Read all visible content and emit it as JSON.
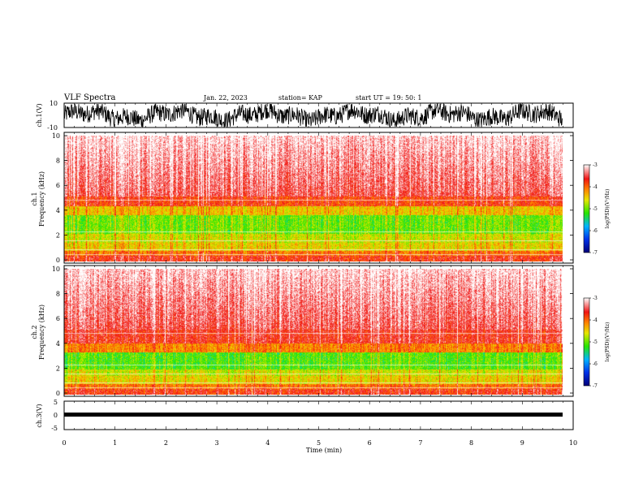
{
  "header": {
    "title": "VLF Spectra",
    "date": "Jan. 22, 2023",
    "station": "station= KAP",
    "start": "start  UT  =   19: 50: 1"
  },
  "chart_data": [
    {
      "type": "line",
      "name": "ch1-waveform",
      "ylabel": "ch.1(V)",
      "ylim": [
        -10,
        10
      ],
      "yticks": [
        "10",
        "-10"
      ],
      "xlim": [
        0,
        10
      ]
    },
    {
      "type": "heatmap",
      "name": "ch1-spectrogram",
      "ylabel": "ch.1\nFrequency  (kHz)",
      "ylim": [
        0,
        10
      ],
      "yticks": [
        "0",
        "2",
        "4",
        "6",
        "8",
        "10"
      ],
      "xlim": [
        0,
        10
      ],
      "colorbar": {
        "label": "log(PSD)(V²/Hz)",
        "range": [
          -7,
          -3
        ],
        "ticks": [
          "-3",
          "-4",
          "-5",
          "-6",
          "-7"
        ]
      }
    },
    {
      "type": "heatmap",
      "name": "ch2-spectrogram",
      "ylabel": "ch.2\nFrequency  (kHz)",
      "ylim": [
        0,
        10
      ],
      "yticks": [
        "0",
        "2",
        "4",
        "6",
        "8",
        "10"
      ],
      "xlim": [
        0,
        10
      ],
      "colorbar": {
        "label": "log(PSD)(V²/Hz)",
        "range": [
          -7,
          -3
        ],
        "ticks": [
          "-3",
          "-4",
          "-5",
          "-6",
          "-7"
        ]
      }
    },
    {
      "type": "line",
      "name": "ch3-waveform",
      "ylabel": "ch.3(V)",
      "ylim": [
        -5,
        5
      ],
      "yticks": [
        "5",
        "0",
        "-5"
      ],
      "xlim": [
        0,
        10
      ],
      "xlabel": "Time  (min)",
      "xticks": [
        "0",
        "1",
        "2",
        "3",
        "4",
        "5",
        "6",
        "7",
        "8",
        "9",
        "10"
      ]
    }
  ],
  "colors": {
    "low": "#0000cc",
    "mid": "#22ee00",
    "yellow": "#eedd00",
    "high": "#ee1111",
    "max": "#ffffff"
  }
}
